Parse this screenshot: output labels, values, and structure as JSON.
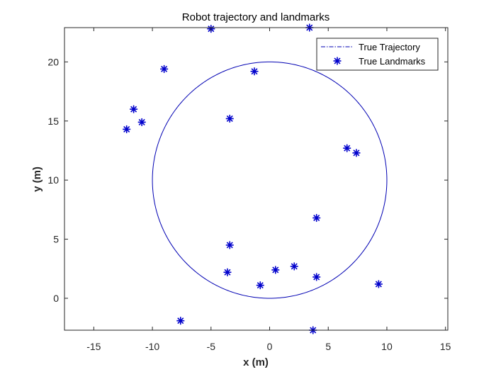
{
  "chart_data": {
    "type": "scatter",
    "title": "Robot trajectory and landmarks",
    "xlabel": "x (m)",
    "ylabel": "y (m)",
    "xlim": [
      -17.5,
      15.2
    ],
    "ylim": [
      -2.7,
      22.9
    ],
    "xticks": [
      -15,
      -10,
      -5,
      0,
      5,
      10,
      15
    ],
    "yticks": [
      0,
      5,
      10,
      15,
      20
    ],
    "grid": false,
    "legend_position": "top-right",
    "series": [
      {
        "name": "True Trajectory",
        "kind": "line",
        "line_style": "dash-dot",
        "color": "#0000b3",
        "shape": "circle",
        "center": [
          0,
          10
        ],
        "radius": 10
      },
      {
        "name": "True Landmarks",
        "kind": "scatter",
        "marker": "asterisk",
        "color": "#0000cc",
        "points": [
          [
            -5.0,
            22.8
          ],
          [
            3.4,
            22.9
          ],
          [
            -9.0,
            19.4
          ],
          [
            -1.3,
            19.2
          ],
          [
            -11.6,
            16.0
          ],
          [
            -12.2,
            14.3
          ],
          [
            -10.9,
            14.9
          ],
          [
            -3.4,
            15.2
          ],
          [
            6.6,
            12.7
          ],
          [
            7.4,
            12.3
          ],
          [
            4.0,
            6.8
          ],
          [
            -3.4,
            4.5
          ],
          [
            -3.6,
            2.2
          ],
          [
            0.5,
            2.4
          ],
          [
            2.1,
            2.7
          ],
          [
            4.0,
            1.8
          ],
          [
            -0.8,
            1.1
          ],
          [
            9.3,
            1.2
          ],
          [
            -7.6,
            -1.9
          ],
          [
            3.7,
            -2.7
          ]
        ]
      }
    ]
  }
}
